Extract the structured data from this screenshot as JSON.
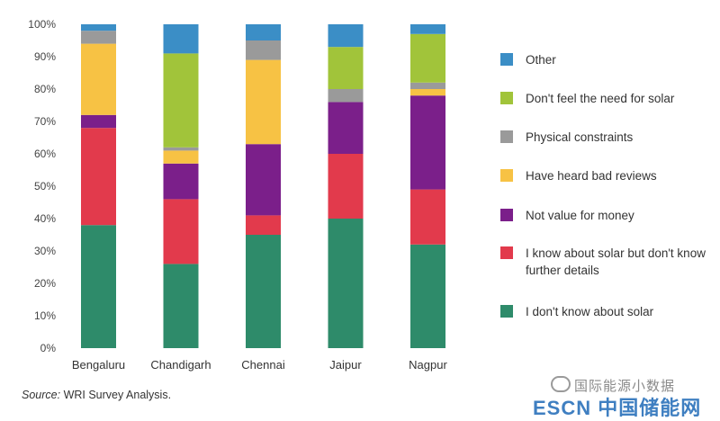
{
  "chart_data": {
    "type": "bar",
    "stacked": true,
    "categories": [
      "Bengaluru",
      "Chandigarh",
      "Chennai",
      "Jaipur",
      "Nagpur"
    ],
    "ylim": [
      0,
      100
    ],
    "yticks": [
      "0%",
      "10%",
      "20%",
      "30%",
      "40%",
      "50%",
      "60%",
      "70%",
      "80%",
      "90%",
      "100%"
    ],
    "grid": false,
    "legend_position": "right",
    "series": [
      {
        "name": "I don't know about solar",
        "color": "#2e8b6a",
        "values": [
          38,
          26,
          35,
          40,
          32
        ]
      },
      {
        "name": "I know about solar but don't know further details",
        "color": "#e23a4c",
        "values": [
          30,
          20,
          6,
          20,
          17
        ]
      },
      {
        "name": "Not value for money",
        "color": "#7b1f8a",
        "values": [
          4,
          11,
          22,
          16,
          29
        ]
      },
      {
        "name": "Have heard bad reviews",
        "color": "#f7c244",
        "values": [
          22,
          4,
          26,
          0,
          2
        ]
      },
      {
        "name": "Physical constraints",
        "color": "#9a9a9a",
        "values": [
          4,
          1,
          6,
          4,
          2
        ]
      },
      {
        "name": "Don't feel the need for solar",
        "color": "#a1c43a",
        "values": [
          0,
          29,
          0,
          13,
          15
        ]
      },
      {
        "name": "Other",
        "color": "#3b8ec6",
        "values": [
          2,
          9,
          5,
          7,
          3
        ]
      }
    ]
  },
  "source": {
    "key": "Source:",
    "text": " WRI Survey Analysis."
  },
  "watermark": {
    "top": "国际能源小数据",
    "bottom": "ESCN 中国储能网"
  }
}
